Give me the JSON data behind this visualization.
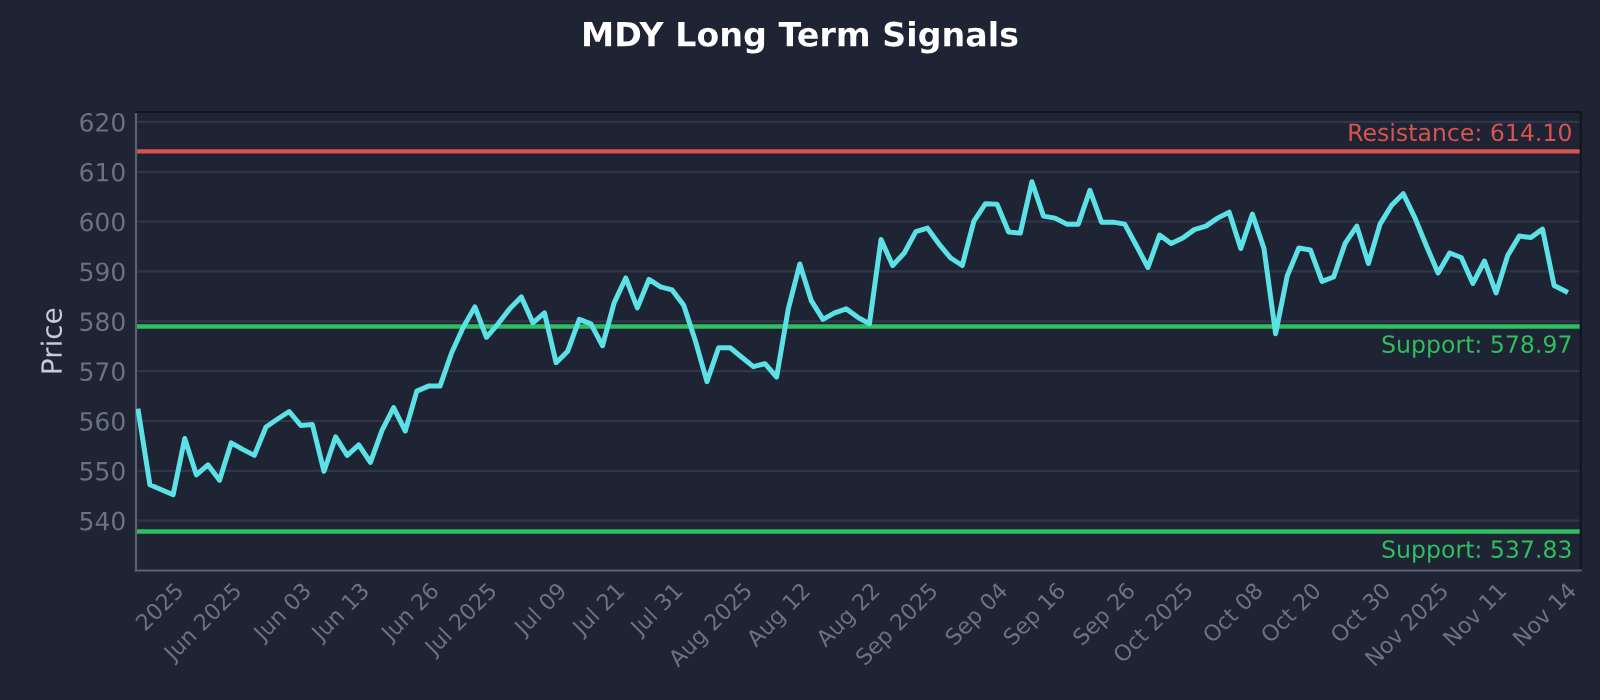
{
  "chart_data": {
    "type": "line",
    "title": "MDY Long Term Signals",
    "ylabel": "Price",
    "categories": [
      null,
      null,
      null,
      "2025",
      null,
      null,
      null,
      null,
      "Jun 2025",
      null,
      null,
      null,
      null,
      null,
      "Jun 03",
      null,
      null,
      null,
      null,
      "Jun 13",
      null,
      null,
      null,
      null,
      null,
      "Jun 26",
      null,
      null,
      null,
      null,
      "Jul 2025",
      null,
      null,
      null,
      null,
      null,
      "Jul 09",
      null,
      null,
      null,
      null,
      "Jul 21",
      null,
      null,
      null,
      null,
      "Jul 31",
      null,
      null,
      null,
      null,
      null,
      "Aug 2025",
      null,
      null,
      null,
      null,
      "Aug 12",
      null,
      null,
      null,
      null,
      null,
      "Aug 22",
      null,
      null,
      null,
      null,
      "Sep 2025",
      null,
      null,
      null,
      null,
      null,
      "Sep 04",
      null,
      null,
      null,
      null,
      "Sep 16",
      null,
      null,
      null,
      null,
      null,
      "Sep 26",
      null,
      null,
      null,
      null,
      "Oct 2025",
      null,
      null,
      null,
      null,
      null,
      "Oct 08",
      null,
      null,
      null,
      null,
      "Oct 20",
      null,
      null,
      null,
      null,
      null,
      "Oct 30",
      null,
      null,
      null,
      null,
      "Nov 2025",
      null,
      null,
      null,
      null,
      "Nov 11",
      null,
      null,
      null,
      null,
      null,
      "Nov 14"
    ],
    "series": [
      {
        "color": "#5ce1e6",
        "values": [
          562,
          547.2,
          546.2,
          545.2,
          556.5,
          549.2,
          551.2,
          548.1,
          555.6,
          554.3,
          553.1,
          558.8,
          560.4,
          561.9,
          559.1,
          559.3,
          549.9,
          556.8,
          553.1,
          555.2,
          551.7,
          558.1,
          562.7,
          558,
          566,
          567,
          567,
          573.7,
          578.8,
          582.9,
          576.8,
          579.5,
          582.5,
          584.9,
          579.7,
          581.7,
          571.7,
          574,
          580.4,
          579.5,
          575.1,
          583.7,
          588.7,
          582.7,
          588.4,
          586.9,
          586.3,
          583.2,
          576.1,
          567.9,
          574.7,
          574.7,
          572.8,
          570.9,
          571.5,
          568.8,
          582.4,
          591.5,
          584.1,
          580.4,
          581.7,
          582.5,
          580.8,
          579.5,
          596.4,
          591.2,
          593.7,
          598,
          598.7,
          595.5,
          592.7,
          591.2,
          600.1,
          603.6,
          603.5,
          597.9,
          597.7,
          608,
          601.1,
          600.7,
          599.5,
          599.5,
          606.3,
          599.9,
          599.9,
          599.5,
          595.2,
          590.8,
          597.3,
          595.6,
          596.7,
          598.4,
          599.1,
          600.7,
          601.9,
          594.6,
          601.5,
          594.6,
          577.5,
          589.1,
          594.7,
          594.3,
          588,
          588.9,
          595.7,
          599.1,
          591.6,
          599.5,
          603.3,
          605.6,
          600.8,
          595.1,
          589.7,
          593.7,
          592.8,
          587.6,
          592.1,
          585.7,
          593.2,
          597.1,
          596.8,
          598.5,
          587.2,
          586
        ]
      }
    ],
    "ylim": [
      530,
      622
    ],
    "yticks": [
      540,
      550,
      560,
      570,
      580,
      590,
      600,
      610,
      620
    ],
    "grid": "y",
    "line_style": "solid",
    "ref_lines": [
      {
        "axis": "y",
        "value": 614.1,
        "label": "Resistance: 614.10",
        "color": "#d9534f"
      },
      {
        "axis": "y",
        "value": 578.97,
        "label": "Support: 578.97",
        "color": "#2fbf5f"
      },
      {
        "axis": "y",
        "value": 537.83,
        "label": "Support: 537.83",
        "color": "#2fbf5f"
      }
    ]
  }
}
